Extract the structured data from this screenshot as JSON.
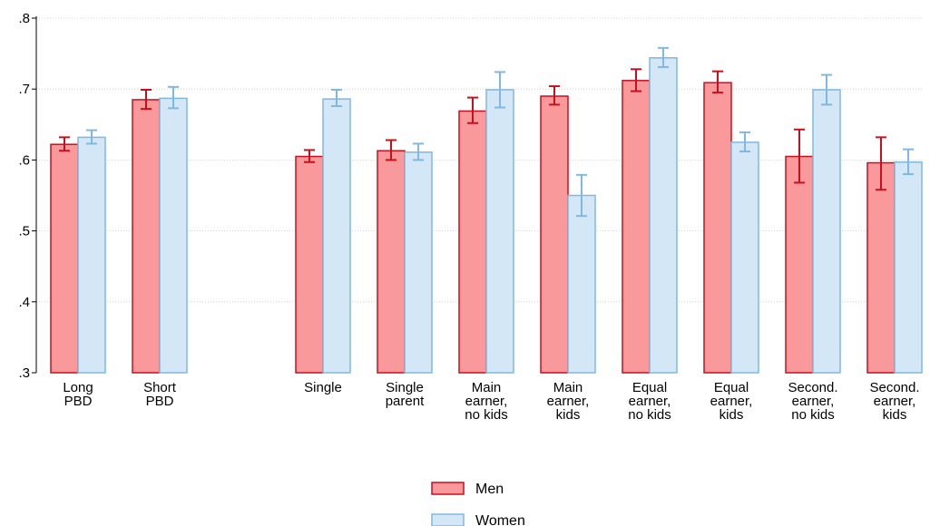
{
  "chart_data": {
    "type": "bar",
    "categories": [
      [
        "Long",
        "PBD"
      ],
      [
        "Short",
        "PBD"
      ],
      [
        "Single"
      ],
      [
        "Single",
        "parent"
      ],
      [
        "Main",
        "earner,",
        "no kids"
      ],
      [
        "Main",
        "earner,",
        "kids"
      ],
      [
        "Equal",
        "earner,",
        "no kids"
      ],
      [
        "Equal",
        "earner,",
        "kids"
      ],
      [
        "Second.",
        "earner,",
        "no kids"
      ],
      [
        "Second.",
        "earner,",
        "kids"
      ]
    ],
    "series": [
      {
        "name": "Men",
        "values": [
          0.622,
          0.685,
          0.605,
          0.613,
          0.669,
          0.69,
          0.712,
          0.709,
          0.605,
          0.596
        ],
        "ci": [
          [
            0.613,
            0.632
          ],
          [
            0.672,
            0.699
          ],
          [
            0.597,
            0.614
          ],
          [
            0.6,
            0.628
          ],
          [
            0.652,
            0.688
          ],
          [
            0.678,
            0.704
          ],
          [
            0.697,
            0.728
          ],
          [
            0.695,
            0.725
          ],
          [
            0.568,
            0.643
          ],
          [
            0.558,
            0.632
          ]
        ],
        "fill": "#f9999c",
        "stroke": "#c8101d"
      },
      {
        "name": "Women",
        "values": [
          0.632,
          0.687,
          0.686,
          0.611,
          0.699,
          0.55,
          0.744,
          0.625,
          0.699,
          0.597
        ],
        "ci": [
          [
            0.623,
            0.642
          ],
          [
            0.673,
            0.703
          ],
          [
            0.676,
            0.699
          ],
          [
            0.6,
            0.623
          ],
          [
            0.674,
            0.724
          ],
          [
            0.521,
            0.579
          ],
          [
            0.731,
            0.758
          ],
          [
            0.612,
            0.639
          ],
          [
            0.678,
            0.72
          ],
          [
            0.58,
            0.615
          ]
        ],
        "fill": "#d4e7f7",
        "stroke": "#7fb8e0"
      }
    ],
    "y_ticks": [
      ".3",
      ".4",
      ".5",
      ".6",
      ".7",
      ".8"
    ],
    "ylim": [
      0.3,
      0.8
    ],
    "grid": true,
    "legend_position": "bottom"
  }
}
